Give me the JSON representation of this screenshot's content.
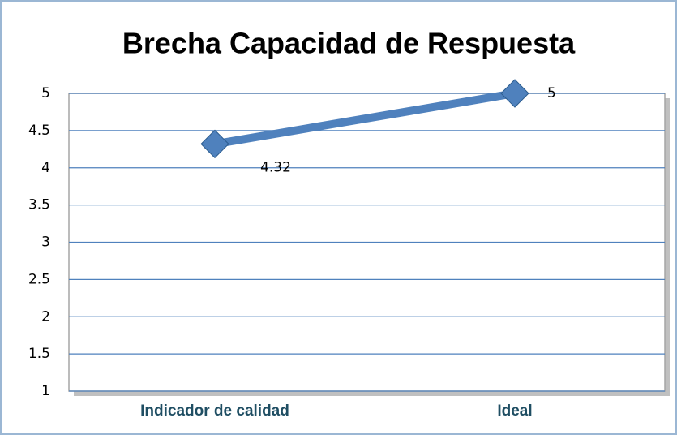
{
  "chart_data": {
    "type": "line",
    "title": "Brecha Capacidad de Respuesta",
    "categories": [
      "Indicador de calidad",
      "Ideal"
    ],
    "series": [
      {
        "color": "#4f81bd",
        "values": [
          4.32,
          5
        ]
      }
    ],
    "ylim": [
      1,
      5
    ],
    "yticks": [
      1,
      1.5,
      2,
      2.5,
      3,
      3.5,
      4,
      4.5,
      5
    ],
    "grid": true
  }
}
